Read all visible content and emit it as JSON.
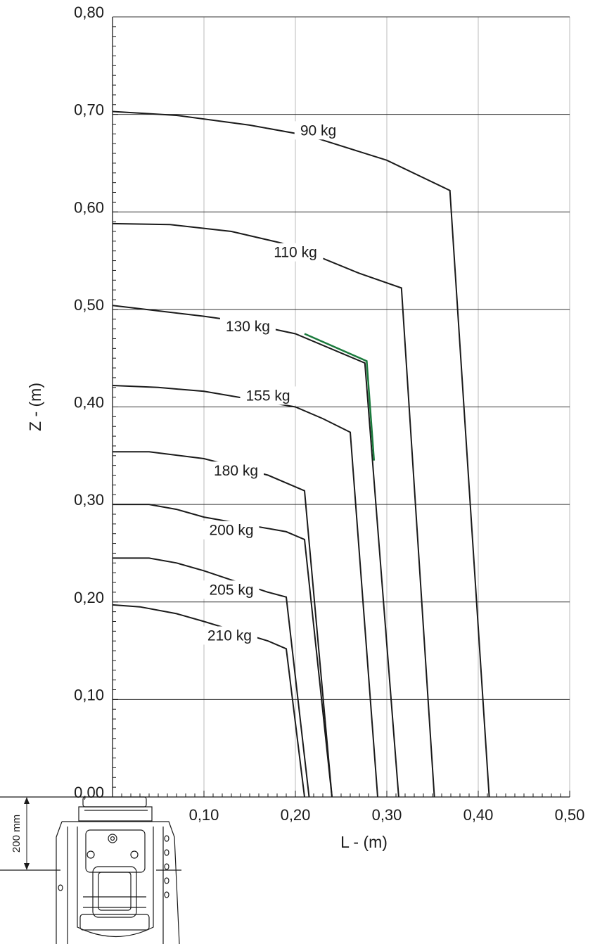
{
  "chart_data": {
    "type": "line",
    "xlabel": "L - (m)",
    "ylabel": "Z - (m)",
    "xlim": [
      0,
      0.5
    ],
    "ylim": [
      0,
      0.8
    ],
    "x_ticks": [
      "0,10",
      "0,20",
      "0,30",
      "0,40",
      "0,50"
    ],
    "y_ticks": [
      "0,00",
      "0,10",
      "0,20",
      "0,30",
      "0,40",
      "0,50",
      "0,60",
      "0,70",
      "0,80"
    ],
    "grid": true,
    "series": [
      {
        "name": "90 kg",
        "points": [
          [
            0,
            0.703
          ],
          [
            0.07,
            0.699
          ],
          [
            0.15,
            0.689
          ],
          [
            0.215,
            0.678
          ],
          [
            0.3,
            0.653
          ],
          [
            0.369,
            0.622
          ],
          [
            0.412,
            0
          ]
        ]
      },
      {
        "name": "110 kg",
        "points": [
          [
            0,
            0.588
          ],
          [
            0.063,
            0.587
          ],
          [
            0.13,
            0.58
          ],
          [
            0.185,
            0.568
          ],
          [
            0.21,
            0.56
          ],
          [
            0.27,
            0.537
          ],
          [
            0.316,
            0.522
          ],
          [
            0.352,
            0
          ]
        ]
      },
      {
        "name": "130 kg",
        "points": [
          [
            0,
            0.504
          ],
          [
            0.1,
            0.493
          ],
          [
            0.13,
            0.489
          ],
          [
            0.2,
            0.475
          ],
          [
            0.276,
            0.445
          ],
          [
            0.313,
            0
          ]
        ]
      },
      {
        "name": "155 kg",
        "points": [
          [
            0,
            0.422
          ],
          [
            0.05,
            0.42
          ],
          [
            0.1,
            0.416
          ],
          [
            0.2,
            0.4
          ],
          [
            0.23,
            0.388
          ],
          [
            0.26,
            0.374
          ],
          [
            0.29,
            0
          ]
        ]
      },
      {
        "name": "180 kg",
        "points": [
          [
            0,
            0.354
          ],
          [
            0.04,
            0.354
          ],
          [
            0.1,
            0.347
          ],
          [
            0.17,
            0.33
          ],
          [
            0.21,
            0.314
          ],
          [
            0.24,
            0
          ]
        ]
      },
      {
        "name": "200 kg",
        "points": [
          [
            0,
            0.3
          ],
          [
            0.04,
            0.3
          ],
          [
            0.07,
            0.295
          ],
          [
            0.1,
            0.287
          ],
          [
            0.19,
            0.272
          ],
          [
            0.21,
            0.264
          ],
          [
            0.24,
            0
          ]
        ]
      },
      {
        "name": "205 kg",
        "points": [
          [
            0,
            0.245
          ],
          [
            0.04,
            0.245
          ],
          [
            0.07,
            0.24
          ],
          [
            0.1,
            0.232
          ],
          [
            0.17,
            0.21
          ],
          [
            0.19,
            0.205
          ],
          [
            0.215,
            0
          ]
        ]
      },
      {
        "name": "210 kg",
        "points": [
          [
            0,
            0.197
          ],
          [
            0.03,
            0.195
          ],
          [
            0.07,
            0.188
          ],
          [
            0.1,
            0.18
          ],
          [
            0.17,
            0.16
          ],
          [
            0.19,
            0.152
          ],
          [
            0.21,
            0
          ]
        ]
      }
    ],
    "highlight": {
      "color": "#1a7a3c",
      "points": [
        [
          0.21,
          0.475
        ],
        [
          0.278,
          0.447
        ],
        [
          0.286,
          0.345
        ]
      ]
    }
  },
  "robot_dimension": {
    "label": "200 mm"
  },
  "colors": {
    "line": "#1a1a1a",
    "grid_major": "#333333",
    "grid_minor": "#bbbbbb",
    "highlight": "#1a7a3c"
  }
}
